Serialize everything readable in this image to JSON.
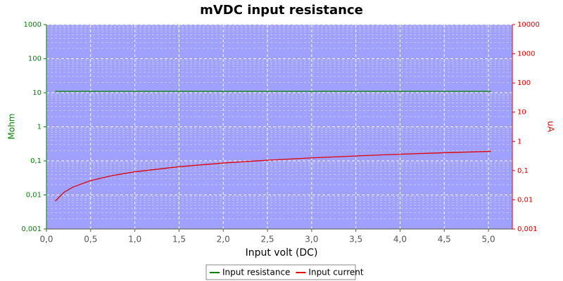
{
  "chart_data": {
    "type": "line",
    "title": "mVDC input resistance",
    "xlabel": "Input volt (DC)",
    "ylabel": "Mohm",
    "y2label": "uA",
    "x": [
      0.1,
      0.2,
      0.3,
      0.5,
      0.75,
      1.0,
      1.5,
      2.0,
      2.5,
      3.0,
      3.5,
      4.0,
      4.5,
      5.03
    ],
    "series": [
      {
        "name": "Input resistance",
        "color": "#008000",
        "axis": "y",
        "values": [
          11,
          11,
          11,
          11,
          11,
          11,
          11,
          11,
          11,
          11,
          11,
          11,
          11,
          11
        ]
      },
      {
        "name": "Input current",
        "color": "#e00000",
        "axis": "y2",
        "values": [
          0.0091,
          0.0182,
          0.0273,
          0.0455,
          0.0682,
          0.0909,
          0.136,
          0.182,
          0.227,
          0.273,
          0.318,
          0.364,
          0.409,
          0.457
        ]
      }
    ],
    "xlim": [
      0,
      5.27
    ],
    "xticks": [
      {
        "value": 0,
        "label": "0,0"
      },
      {
        "value": 0.5,
        "label": "0,5"
      },
      {
        "value": 1,
        "label": "1,0"
      },
      {
        "value": 1.5,
        "label": "1,5"
      },
      {
        "value": 2,
        "label": "2,0"
      },
      {
        "value": 2.5,
        "label": "2,5"
      },
      {
        "value": 3,
        "label": "3,0"
      },
      {
        "value": 3.5,
        "label": "3,5"
      },
      {
        "value": 4,
        "label": "4,0"
      },
      {
        "value": 4.5,
        "label": "4,5"
      },
      {
        "value": 5,
        "label": "5,0"
      }
    ],
    "ylim": [
      0.001,
      1000
    ],
    "ylog": true,
    "yticks": [
      {
        "value": 0.001,
        "label": "0,001"
      },
      {
        "value": 0.01,
        "label": "0,01"
      },
      {
        "value": 0.1,
        "label": "0,1"
      },
      1,
      10,
      100,
      1000
    ],
    "y2lim": [
      0.001,
      10000
    ],
    "y2log": true,
    "y2ticks": [
      {
        "value": 0.001,
        "label": "0,001"
      },
      {
        "value": 0.01,
        "label": "0,01"
      },
      {
        "value": 0.1,
        "label": "0,1"
      },
      1,
      10,
      100,
      1000,
      10000
    ],
    "grid": true,
    "legend": "bottom"
  }
}
